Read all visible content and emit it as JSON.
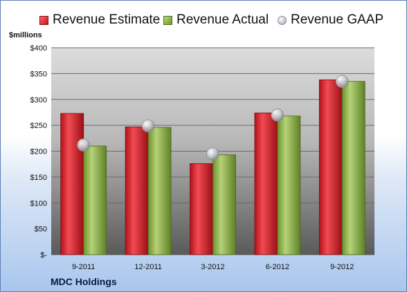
{
  "legend": {
    "estimate": "Revenue Estimate",
    "actual": "Revenue Actual",
    "gaap": "Revenue GAAP"
  },
  "unit_label": "$millions",
  "company": "MDC Holdings",
  "colors": {
    "estimate": "#d4202a",
    "actual": "#8fb04a",
    "gaap": "#c5c9cf"
  },
  "chart_data": {
    "type": "bar",
    "categories": [
      "9-2011",
      "12-2011",
      "3-2012",
      "6-2012",
      "9-2012"
    ],
    "series": [
      {
        "name": "Revenue Estimate",
        "values": [
          273,
          247,
          176,
          274,
          338
        ]
      },
      {
        "name": "Revenue Actual",
        "values": [
          210,
          246,
          193,
          268,
          335
        ]
      },
      {
        "name": "Revenue GAAP",
        "values": [
          212,
          249,
          195,
          270,
          335
        ]
      }
    ],
    "ylabel": "$millions",
    "ylim": [
      0,
      400
    ],
    "yticks": [
      0,
      50,
      100,
      150,
      200,
      250,
      300,
      350,
      400
    ],
    "ytick_labels": [
      "$-",
      "$50",
      "$100",
      "$150",
      "$200",
      "$250",
      "$300",
      "$350",
      "$400"
    ],
    "grid": true,
    "legend_position": "top"
  }
}
